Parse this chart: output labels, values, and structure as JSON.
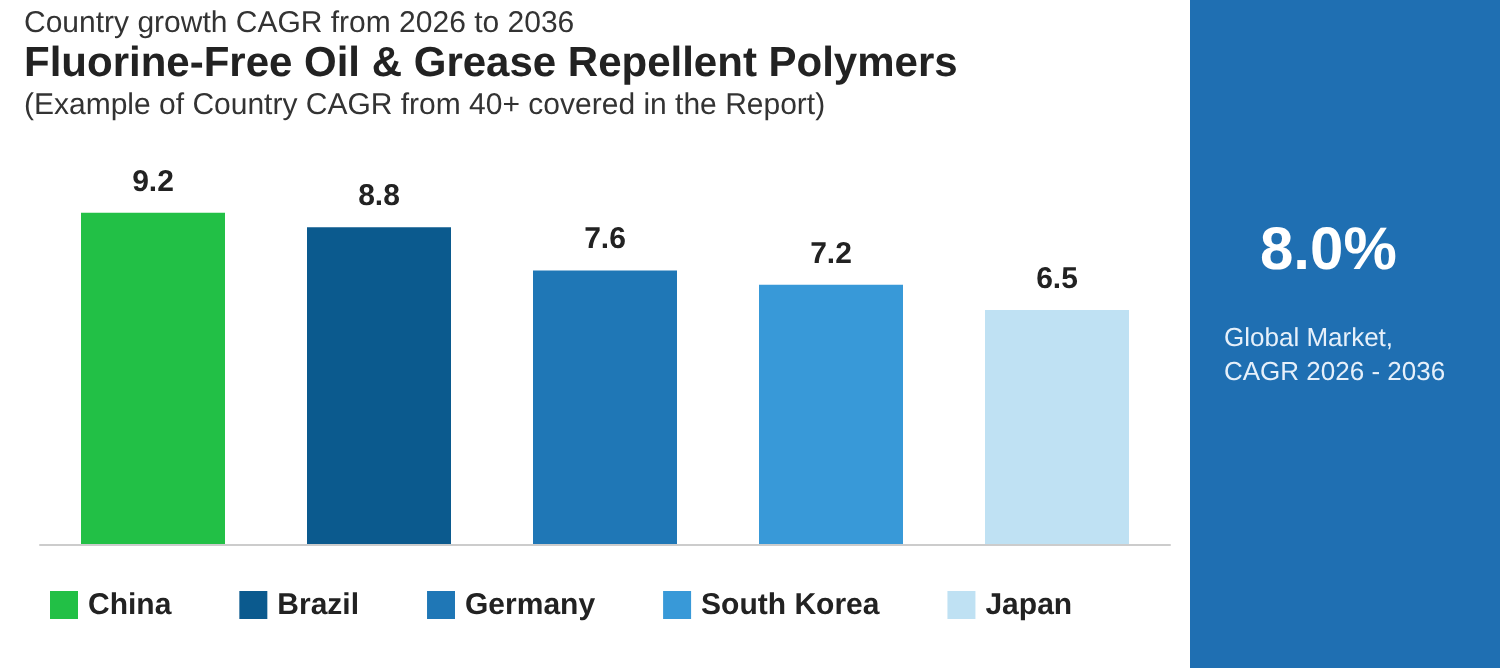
{
  "chart_data": {
    "type": "bar",
    "title": "Fluorine-Free Oil & Grease Repellent Polymers",
    "subtitle": "(Example of Country CAGR from 40+ covered in the Report)",
    "annotations": [
      "Country growth CAGR from 2026 to 2036",
      "8.0%",
      "Global Market, CAGR 2026 - 2036"
    ],
    "categories": [
      null,
      null,
      null,
      null,
      null
    ],
    "stacked": true,
    "series": [
      {
        "name": "China",
        "color": "#22c046",
        "values": [
          9.2,
          0,
          0,
          0,
          0
        ],
        "value_labels": [
          "9.2",
          null,
          null,
          null,
          null
        ]
      },
      {
        "name": "Brazil",
        "color": "#0b5a8e",
        "values": [
          0,
          8.8,
          0,
          0,
          0
        ],
        "value_labels": [
          null,
          "8.8",
          null,
          null,
          null
        ]
      },
      {
        "name": "Germany",
        "color": "#1f77b6",
        "values": [
          0,
          0,
          7.6,
          0,
          0
        ],
        "value_labels": [
          null,
          null,
          "7.6",
          null,
          null
        ]
      },
      {
        "name": "South Korea",
        "color": "#3899d8",
        "values": [
          0,
          0,
          0,
          7.2,
          0
        ],
        "value_labels": [
          null,
          null,
          null,
          "7.2",
          null
        ]
      },
      {
        "name": "Japan",
        "color": "#bfe1f3",
        "values": [
          0,
          0,
          0,
          0,
          6.5
        ],
        "value_labels": [
          null,
          null,
          null,
          null,
          "6.5"
        ]
      }
    ],
    "legend": "bottom"
  }
}
